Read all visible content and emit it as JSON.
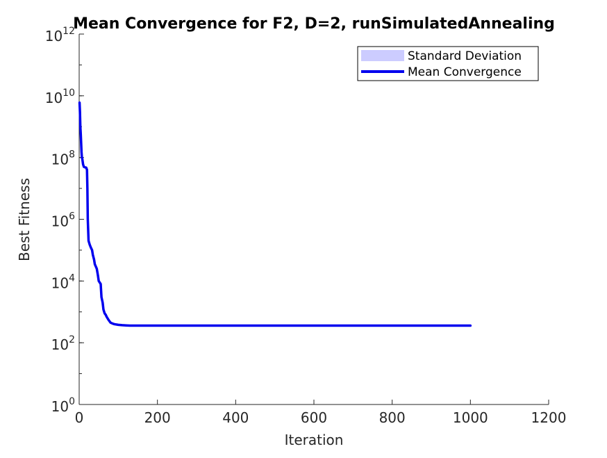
{
  "chart_data": {
    "type": "line",
    "title": "Mean Convergence for F2, D=2, runSimulatedAnnealing",
    "xlabel": "Iteration",
    "ylabel": "Best Fitness",
    "xlim": [
      0,
      1200
    ],
    "ylim": [
      1,
      1000000000000
    ],
    "yscale": "log",
    "xticks": [
      0,
      200,
      400,
      600,
      800,
      1000,
      1200
    ],
    "yticks": [
      {
        "base": "10",
        "exp": "0",
        "value": 1
      },
      {
        "base": "10",
        "exp": "2",
        "value": 100
      },
      {
        "base": "10",
        "exp": "4",
        "value": 10000
      },
      {
        "base": "10",
        "exp": "6",
        "value": 1000000
      },
      {
        "base": "10",
        "exp": "8",
        "value": 100000000
      },
      {
        "base": "10",
        "exp": "10",
        "value": 10000000000
      },
      {
        "base": "10",
        "exp": "12",
        "value": 1000000000000
      }
    ],
    "grid": false,
    "legend_position": "top-right",
    "legend": [
      {
        "label": "Standard Deviation",
        "kind": "patch",
        "color": "#ccccff"
      },
      {
        "label": "Mean Convergence",
        "kind": "line",
        "color": "#0000ee"
      }
    ],
    "series": [
      {
        "name": "Mean Convergence",
        "color": "#0000ee",
        "x": [
          1,
          2,
          3,
          4,
          5,
          6,
          7,
          8,
          10,
          12,
          15,
          18,
          20,
          21,
          22,
          24,
          27,
          30,
          33,
          35,
          38,
          40,
          45,
          48,
          50,
          55,
          57,
          60,
          62,
          65,
          68,
          70,
          75,
          80,
          85,
          90,
          100,
          110,
          120,
          130,
          150,
          200,
          300,
          500,
          700,
          1000
        ],
        "y": [
          6000000000,
          3000000000,
          1000000000,
          600000000,
          300000000,
          150000000,
          100000000,
          90000000,
          60000000,
          50000000,
          48000000,
          47000000,
          40000000,
          10000000,
          1000000,
          200000,
          150000,
          120000,
          100000,
          70000,
          50000,
          35000,
          25000,
          15000,
          10000,
          8000,
          3000,
          2000,
          1200,
          900,
          800,
          700,
          550,
          450,
          420,
          400,
          380,
          370,
          365,
          360,
          360,
          360,
          360,
          360,
          360,
          360
        ]
      }
    ]
  }
}
